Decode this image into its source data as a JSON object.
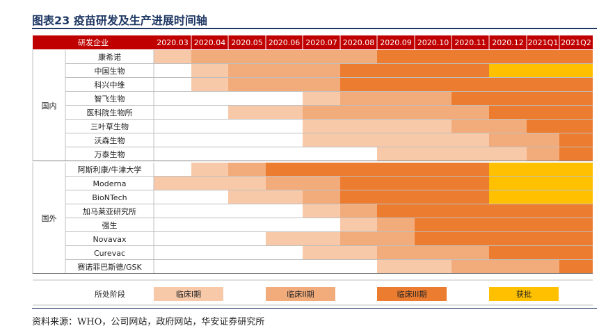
{
  "title": "图表23 疫苗研发及生产进展时间轴",
  "source": "资料来源：WHO，公司网站，政府网站，华安证券研究所",
  "colors": {
    "header_bg": "#c00000",
    "header_text": "#ffffff",
    "phase1": "#f7c9a9",
    "phase2": "#f2ac7c",
    "phase3": "#ec7c30",
    "approved": "#ffc000",
    "grid": "#ffffff",
    "border": "#bfbfbf"
  },
  "chart_data": {
    "type": "table",
    "header_label": "研发企业",
    "periods": [
      "2020.03",
      "2020.04",
      "2020.05",
      "2020.06",
      "2020.07",
      "2020.08",
      "2020.09",
      "2020.10",
      "2020.11",
      "2020.12",
      "2021Q1",
      "2021Q2"
    ],
    "legend_label": "所处阶段",
    "phases": [
      {
        "key": "phase1",
        "label": "临床I期"
      },
      {
        "key": "phase2",
        "label": "临床II期"
      },
      {
        "key": "phase3",
        "label": "临床III期"
      },
      {
        "key": "approved",
        "label": "获批"
      }
    ],
    "groups": [
      {
        "name": "国内",
        "companies": [
          {
            "name": "康希诺",
            "stages": [
              "phase1",
              "phase2",
              "phase2",
              "phase2",
              "phase2",
              "phase2",
              "phase3",
              "phase3",
              "phase3",
              "phase3",
              "phase3",
              "phase3"
            ]
          },
          {
            "name": "中国生物",
            "stages": [
              null,
              "phase1",
              "phase2",
              "phase2",
              "phase2",
              "phase3",
              "phase3",
              "phase3",
              "phase3",
              "approved",
              "approved",
              "approved"
            ]
          },
          {
            "name": "科兴中维",
            "stages": [
              null,
              "phase1",
              "phase2",
              "phase2",
              "phase2",
              "phase3",
              "phase3",
              "phase3",
              "phase3",
              "phase3",
              "phase3",
              "phase3"
            ]
          },
          {
            "name": "智飞生物",
            "stages": [
              null,
              null,
              null,
              null,
              "phase1",
              "phase2",
              "phase2",
              "phase2",
              "phase3",
              "phase3",
              "phase3",
              "phase3"
            ]
          },
          {
            "name": "医科院生物所",
            "stages": [
              null,
              null,
              "phase1",
              "phase1",
              "phase2",
              "phase2",
              "phase2",
              "phase2",
              "phase2",
              "phase3",
              "phase3",
              "phase3"
            ]
          },
          {
            "name": "三叶草生物",
            "stages": [
              null,
              null,
              null,
              null,
              "phase1",
              "phase1",
              "phase1",
              "phase1",
              "phase2",
              "phase2",
              "phase3",
              "phase3"
            ]
          },
          {
            "name": "沃森生物",
            "stages": [
              null,
              null,
              null,
              null,
              "phase1",
              "phase1",
              "phase1",
              "phase1",
              "phase1",
              "phase2",
              "phase2",
              "phase3"
            ]
          },
          {
            "name": "万泰生物",
            "stages": [
              null,
              null,
              null,
              null,
              null,
              null,
              "phase1",
              "phase1",
              "phase1",
              "phase1",
              "phase2",
              "phase3"
            ]
          }
        ]
      },
      {
        "name": "国外",
        "companies": [
          {
            "name": "阿斯利康/牛津大学",
            "stages": [
              null,
              "phase1",
              "phase2",
              "phase3",
              "phase3",
              "phase3",
              "phase3",
              "phase3",
              "phase3",
              "approved",
              "approved",
              "approved"
            ]
          },
          {
            "name": "Moderna",
            "stages": [
              "phase1",
              "phase1",
              "phase1",
              "phase2",
              "phase2",
              "phase3",
              "phase3",
              "phase3",
              "phase3",
              "approved",
              "approved",
              "approved"
            ]
          },
          {
            "name": "BioNTech",
            "stages": [
              null,
              null,
              "phase1",
              "phase1",
              "phase2",
              "phase3",
              "phase3",
              "phase3",
              "phase3",
              "approved",
              "approved",
              "approved"
            ]
          },
          {
            "name": "加马莱亚研究所",
            "stages": [
              null,
              null,
              null,
              null,
              "phase1",
              "phase2",
              "phase3",
              "phase3",
              "phase3",
              "phase3",
              "phase3",
              "phase3"
            ]
          },
          {
            "name": "强生",
            "stages": [
              null,
              null,
              null,
              null,
              null,
              "phase1",
              "phase2",
              "phase3",
              "phase3",
              "phase3",
              "phase3",
              "phase3"
            ]
          },
          {
            "name": "Novavax",
            "stages": [
              null,
              null,
              null,
              "phase1",
              "phase1",
              "phase2",
              "phase2",
              "phase3",
              "phase3",
              "phase3",
              "phase3",
              "phase3"
            ]
          },
          {
            "name": "Curevac",
            "stages": [
              null,
              null,
              null,
              null,
              "phase1",
              "phase1",
              "phase2",
              "phase2",
              "phase2",
              "phase3",
              "phase3",
              "phase3"
            ]
          },
          {
            "name": "赛诺菲巴斯德/GSK",
            "stages": [
              null,
              null,
              null,
              null,
              null,
              null,
              "phase1",
              "phase1",
              "phase2",
              "phase2",
              "phase2",
              "phase3"
            ]
          }
        ]
      }
    ]
  }
}
